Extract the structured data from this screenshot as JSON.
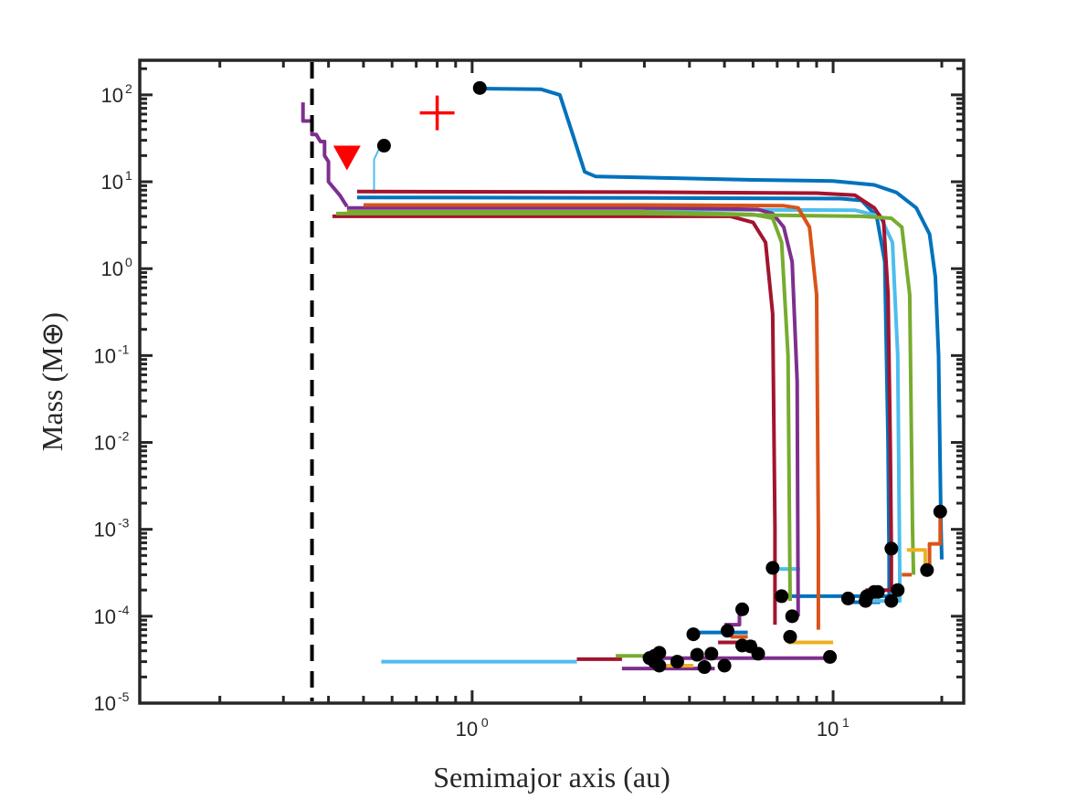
{
  "chart_data": {
    "type": "line",
    "title": "",
    "xlabel": "Semimajor axis (au)",
    "ylabel": "Mass (M⊕)",
    "xscale": "log",
    "yscale": "log",
    "xlim": [
      0.12,
      23
    ],
    "ylim": [
      1e-05,
      250
    ],
    "grid": false,
    "x_ticks": [
      {
        "value": 1,
        "base": "10",
        "exp": "0"
      },
      {
        "value": 10,
        "base": "10",
        "exp": "1"
      }
    ],
    "y_ticks": [
      {
        "value": 1e-05,
        "base": "10",
        "exp": "-5"
      },
      {
        "value": 0.0001,
        "base": "10",
        "exp": "-4"
      },
      {
        "value": 0.001,
        "base": "10",
        "exp": "-3"
      },
      {
        "value": 0.01,
        "base": "10",
        "exp": "-2"
      },
      {
        "value": 0.1,
        "base": "10",
        "exp": "-1"
      },
      {
        "value": 1,
        "base": "10",
        "exp": "0"
      },
      {
        "value": 10,
        "base": "10",
        "exp": "1"
      },
      {
        "value": 100,
        "base": "10",
        "exp": "2"
      }
    ],
    "reference_lines": [
      {
        "orientation": "vertical",
        "x": 0.36,
        "style": "dashed",
        "color": "#000000"
      }
    ],
    "series": [
      {
        "color": "#0072BD",
        "width": 4,
        "points": [
          [
            1.05,
            118
          ],
          [
            1.55,
            116
          ],
          [
            1.75,
            100
          ],
          [
            1.9,
            35
          ],
          [
            2.05,
            13
          ],
          [
            2.2,
            11.5
          ],
          [
            6,
            10.5
          ],
          [
            10,
            10.2
          ],
          [
            13,
            9.2
          ],
          [
            15,
            7.5
          ],
          [
            17,
            5
          ],
          [
            18.5,
            2.5
          ],
          [
            19.2,
            0.8
          ],
          [
            19.6,
            0.1
          ],
          [
            19.9,
            0.001
          ],
          [
            20,
            0.00045
          ]
        ]
      },
      {
        "color": "#0072BD",
        "width": 4,
        "points": [
          [
            0.48,
            6.6
          ],
          [
            3,
            6.5
          ],
          [
            10.5,
            6.4
          ],
          [
            12,
            6.1
          ],
          [
            13.2,
            4
          ],
          [
            13.9,
            1.2
          ],
          [
            14.2,
            0.01
          ],
          [
            14.3,
            0.0004
          ],
          [
            14.3,
            0.00017
          ],
          [
            7.2,
            0.00017
          ]
        ]
      },
      {
        "color": "#0072BD",
        "width": 4,
        "points": [
          [
            4,
            6.5e-05
          ],
          [
            5.8,
            6.5e-05
          ]
        ]
      },
      {
        "color": "#0072BD",
        "width": 4,
        "points": [
          [
            11,
            0.000145
          ],
          [
            13.5,
            0.000145
          ]
        ]
      },
      {
        "color": "#4DBEEE",
        "width": 2,
        "points": [
          [
            0.535,
            7.3
          ],
          [
            0.535,
            18
          ],
          [
            0.555,
            25
          ]
        ]
      },
      {
        "color": "#4DBEEE",
        "width": 4,
        "points": [
          [
            0.56,
            3e-05
          ],
          [
            1.95,
            3e-05
          ]
        ]
      },
      {
        "color": "#4DBEEE",
        "width": 4,
        "points": [
          [
            3,
            4.8
          ],
          [
            11.5,
            4.7
          ],
          [
            13.5,
            4
          ],
          [
            14.6,
            2
          ],
          [
            15.1,
            0.1
          ],
          [
            15.3,
            0.0003
          ],
          [
            15.3,
            0.00015
          ],
          [
            12.5,
            0.00015
          ]
        ]
      },
      {
        "color": "#4DBEEE",
        "width": 4,
        "points": [
          [
            7.1,
            0.00035
          ],
          [
            8.1,
            0.00035
          ]
        ]
      },
      {
        "color": "#A2142F",
        "width": 4,
        "points": [
          [
            0.41,
            4
          ],
          [
            3,
            4
          ],
          [
            5.2,
            4
          ],
          [
            6,
            3.4
          ],
          [
            6.5,
            2
          ],
          [
            6.8,
            0.3
          ],
          [
            6.9,
            0.001
          ],
          [
            6.9,
            8e-05
          ]
        ]
      },
      {
        "color": "#A2142F",
        "width": 4,
        "points": [
          [
            0.48,
            7.7
          ],
          [
            3,
            7.6
          ],
          [
            9,
            7.4
          ],
          [
            11.5,
            7
          ],
          [
            13,
            5
          ],
          [
            13.8,
            3.5
          ],
          [
            14.2,
            0.5
          ],
          [
            14.4,
            0.01
          ],
          [
            14.5,
            0.0006
          ],
          [
            14.5,
            0.0002
          ],
          [
            12.3,
            0.0002
          ]
        ]
      },
      {
        "color": "#A2142F",
        "width": 4,
        "points": [
          [
            1.95,
            3.2e-05
          ],
          [
            2.6,
            3.2e-05
          ]
        ]
      },
      {
        "color": "#A2142F",
        "width": 4,
        "points": [
          [
            4.8,
            5e-05
          ],
          [
            6.1,
            5e-05
          ]
        ]
      },
      {
        "color": "#7E2F8E",
        "width": 4,
        "points": [
          [
            0.34,
            82
          ],
          [
            0.34,
            50
          ],
          [
            0.36,
            50
          ],
          [
            0.36,
            35
          ],
          [
            0.37,
            35
          ],
          [
            0.38,
            29
          ],
          [
            0.39,
            29
          ],
          [
            0.39,
            20
          ],
          [
            0.4,
            17
          ],
          [
            0.4,
            10
          ],
          [
            0.43,
            7
          ],
          [
            0.45,
            5.2
          ]
        ]
      },
      {
        "color": "#7E2F8E",
        "width": 4,
        "points": [
          [
            0.45,
            5
          ],
          [
            3.5,
            5
          ],
          [
            6.2,
            4.8
          ],
          [
            6.8,
            4.3
          ],
          [
            7.3,
            3
          ],
          [
            7.7,
            1.2
          ],
          [
            7.95,
            0.05
          ],
          [
            8,
            0.0001
          ]
        ]
      },
      {
        "color": "#7E2F8E",
        "width": 4,
        "points": [
          [
            2.6,
            2.5e-05
          ],
          [
            4.7,
            2.5e-05
          ]
        ]
      },
      {
        "color": "#7E2F8E",
        "width": 4,
        "points": [
          [
            3.1,
            3.3e-05
          ],
          [
            9.7,
            3.3e-05
          ]
        ]
      },
      {
        "color": "#7E2F8E",
        "width": 4,
        "points": [
          [
            5,
            8e-05
          ],
          [
            5.5,
            8e-05
          ],
          [
            5.5,
            0.00012
          ]
        ]
      },
      {
        "color": "#77AC30",
        "width": 4,
        "points": [
          [
            0.45,
            4.5
          ],
          [
            3,
            4.5
          ],
          [
            6,
            4.2
          ],
          [
            6.8,
            3.8
          ],
          [
            7.2,
            2
          ],
          [
            7.5,
            0.1
          ],
          [
            7.6,
            0.00015
          ]
        ]
      },
      {
        "color": "#77AC30",
        "width": 4,
        "points": [
          [
            0.42,
            4.3
          ],
          [
            3,
            4.3
          ],
          [
            12,
            4
          ],
          [
            14.5,
            3.8
          ],
          [
            15.5,
            3
          ],
          [
            16.3,
            0.5
          ],
          [
            16.6,
            0.001
          ],
          [
            16.7,
            0.0003
          ]
        ]
      },
      {
        "color": "#77AC30",
        "width": 4,
        "points": [
          [
            2.5,
            3.5e-05
          ],
          [
            3.2,
            3.5e-05
          ]
        ]
      },
      {
        "color": "#D95319",
        "width": 4,
        "points": [
          [
            0.5,
            5.4
          ],
          [
            3,
            5.4
          ],
          [
            7.3,
            5.3
          ],
          [
            8,
            5
          ],
          [
            8.6,
            3
          ],
          [
            9,
            0.5
          ],
          [
            9.1,
            0.001
          ],
          [
            9.1,
            7e-05
          ]
        ]
      },
      {
        "color": "#D95319",
        "width": 4,
        "points": [
          [
            15.5,
            0.0003
          ],
          [
            16.5,
            0.0003
          ]
        ]
      },
      {
        "color": "#D95319",
        "width": 4,
        "points": [
          [
            5.2,
            5.8e-05
          ],
          [
            5.8,
            5.8e-05
          ]
        ]
      },
      {
        "color": "#D95319",
        "width": 4,
        "points": [
          [
            18.5,
            0.00038
          ],
          [
            18.5,
            0.00068
          ],
          [
            19.8,
            0.00068
          ],
          [
            19.8,
            0.0016
          ]
        ]
      },
      {
        "color": "#EDB120",
        "width": 4,
        "points": [
          [
            7.5,
            5e-05
          ],
          [
            10,
            5e-05
          ]
        ]
      },
      {
        "color": "#EDB120",
        "width": 4,
        "points": [
          [
            16,
            0.00058
          ],
          [
            18,
            0.00058
          ],
          [
            18,
            0.00032
          ]
        ]
      },
      {
        "color": "#EDB120",
        "width": 4,
        "points": [
          [
            3.3,
            2.7e-05
          ],
          [
            4.1,
            2.7e-05
          ]
        ]
      }
    ],
    "endpoints": [
      [
        1.05,
        120
      ],
      [
        0.57,
        26
      ],
      [
        19.8,
        0.0016
      ],
      [
        14.5,
        0.0006
      ],
      [
        18.2,
        0.00034
      ],
      [
        6.8,
        0.00036
      ],
      [
        12.3,
        0.00015
      ],
      [
        13,
        0.00019
      ],
      [
        12.4,
        0.00017
      ],
      [
        13.3,
        0.00019
      ],
      [
        14.5,
        0.00015
      ],
      [
        15.1,
        0.0002
      ],
      [
        11,
        0.00016
      ],
      [
        7.2,
        0.00017
      ],
      [
        7.7,
        0.0001
      ],
      [
        5.6,
        0.00012
      ],
      [
        7.6,
        5.8e-05
      ],
      [
        5.1,
        6.8e-05
      ],
      [
        4.1,
        6.2e-05
      ],
      [
        5.6,
        4.6e-05
      ],
      [
        5.9,
        4.5e-05
      ],
      [
        6.2,
        3.7e-05
      ],
      [
        4.6,
        3.7e-05
      ],
      [
        4.2,
        3.6e-05
      ],
      [
        3.3,
        3.8e-05
      ],
      [
        3.1,
        3.3e-05
      ],
      [
        3.2,
        3e-05
      ],
      [
        3.3,
        2.7e-05
      ],
      [
        3.7,
        3e-05
      ],
      [
        4.4,
        2.6e-05
      ],
      [
        5,
        2.7e-05
      ],
      [
        9.8,
        3.4e-05
      ],
      [
        3.2,
        3.5e-05
      ]
    ],
    "markers": [
      {
        "shape": "triangle-down",
        "color": "#FF0000",
        "x": 0.45,
        "y": 19
      },
      {
        "shape": "plus",
        "color": "#FF0000",
        "x": 0.8,
        "y": 62
      }
    ]
  }
}
